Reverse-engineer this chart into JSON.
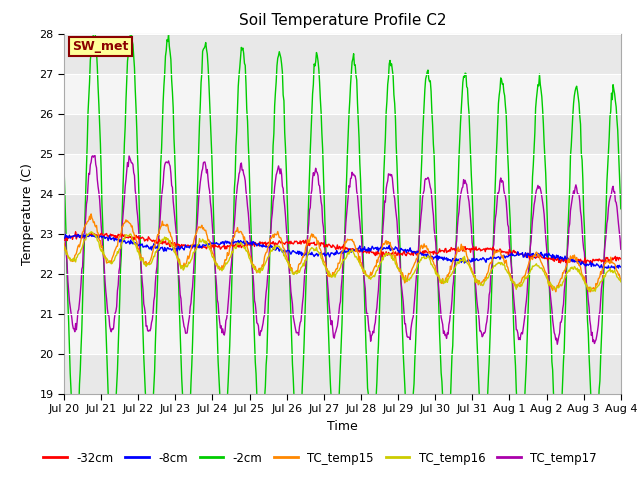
{
  "title": "Soil Temperature Profile C2",
  "xlabel": "Time",
  "ylabel": "Temperature (C)",
  "ylim": [
    19.0,
    28.0
  ],
  "yticks": [
    19.0,
    20.0,
    21.0,
    22.0,
    23.0,
    24.0,
    25.0,
    26.0,
    27.0,
    28.0
  ],
  "xtick_labels": [
    "Jul 20",
    "Jul 21",
    "Jul 22",
    "Jul 23",
    "Jul 24",
    "Jul 25",
    "Jul 26",
    "Jul 27",
    "Jul 28",
    "Jul 29",
    "Jul 30",
    "Jul 31",
    "Aug 1",
    "Aug 2",
    "Aug 3",
    "Aug 4"
  ],
  "annotation_text": "SW_met",
  "annotation_bg": "#ffff99",
  "annotation_border": "#8B0000",
  "annotation_text_color": "#8B0000",
  "fig_bg_color": "#ffffff",
  "plot_bg_color": "#f0f0f0",
  "legend_entries": [
    "-32cm",
    "-8cm",
    "-2cm",
    "TC_temp15",
    "TC_temp16",
    "TC_temp17"
  ],
  "legend_colors": [
    "#ff0000",
    "#0000ff",
    "#00cc00",
    "#ff8800",
    "#cccc00",
    "#aa00aa"
  ],
  "num_days": 15,
  "seed": 42
}
